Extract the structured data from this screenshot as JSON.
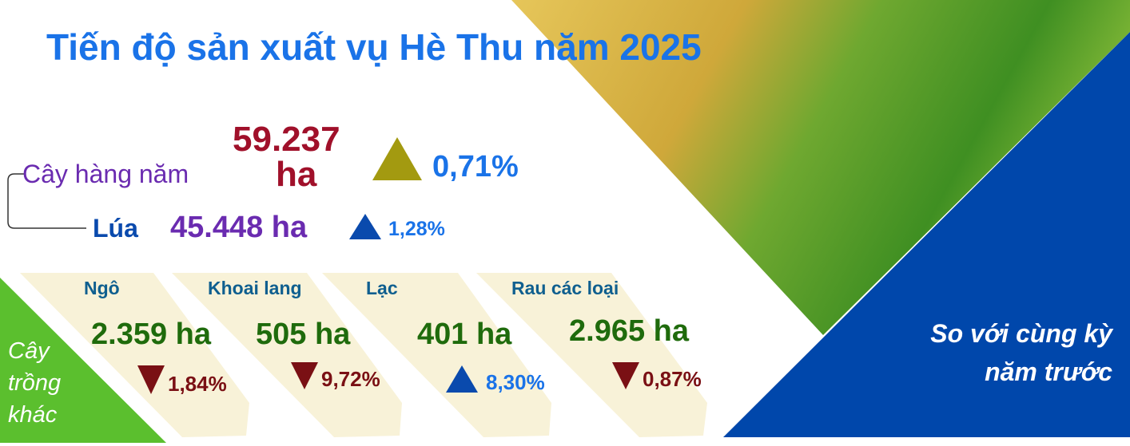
{
  "title": "Tiến độ sản xuất vụ Hè Thu năm 2025",
  "annual": {
    "label": "Cây hàng năm",
    "value": "59.237",
    "unit": "ha",
    "change": "0,71%",
    "direction": "up"
  },
  "rice": {
    "label": "Lúa",
    "value": "45.448 ha",
    "change": "1,28%",
    "direction": "up"
  },
  "other_label": [
    "Cây",
    "trồng",
    "khác"
  ],
  "crops": [
    {
      "name": "Ngô",
      "value": "2.359 ha",
      "change": "1,84%",
      "direction": "down"
    },
    {
      "name": "Khoai lang",
      "value": "505 ha",
      "change": "9,72%",
      "direction": "down"
    },
    {
      "name": "Lạc",
      "value": "401 ha",
      "change": "8,30%",
      "direction": "up"
    },
    {
      "name": "Rau các loại",
      "value": "2.965 ha",
      "change": "0,87%",
      "direction": "down"
    }
  ],
  "comparison_note": [
    "So với cùng kỳ",
    "năm trước"
  ],
  "colors": {
    "title": "#1a73e8",
    "annual_value": "#a0102a",
    "purple": "#6a2bb0",
    "green_value": "#1f6b0c",
    "down": "#7a1014",
    "up_blue": "#0a4aad",
    "up_olive": "#a39a10",
    "card": "#f8f2d8",
    "side_green": "#5bbf2e",
    "panel_blue": "#0047ab"
  }
}
